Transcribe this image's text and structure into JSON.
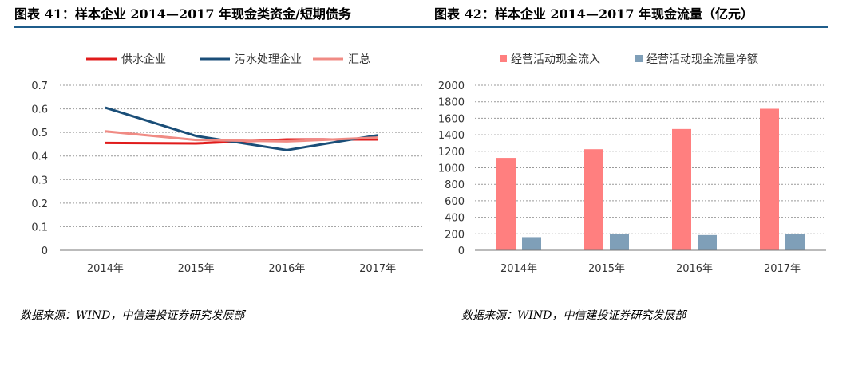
{
  "left_title": "图表 41：样本企业 2014—2017 年现金类资金/短期债务",
  "right_title": "图表 42：样本企业 2014—2017 年现金流量（亿元）",
  "left_source": "数据来源：WIND，中信建投证券研究发展部",
  "right_source": "数据来源：WIND，中信建投证券研究发展部",
  "colors": {
    "rule": "#1f5d8b"
  },
  "chart_data": [
    {
      "type": "line",
      "categories": [
        "2014年",
        "2015年",
        "2016年",
        "2017年"
      ],
      "ylim": [
        0,
        0.7
      ],
      "yticks": [
        "0",
        "0.1",
        "0.2",
        "0.3",
        "0.4",
        "0.5",
        "0.6",
        "0.7"
      ],
      "grid": true,
      "legend_position": "top",
      "series": [
        {
          "name": "供水企业",
          "values": [
            0.455,
            0.453,
            0.47,
            0.47
          ],
          "color": "#e01b1b"
        },
        {
          "name": "污水处理企业",
          "values": [
            0.605,
            0.485,
            0.425,
            0.488
          ],
          "color": "#1a4e78"
        },
        {
          "name": "汇总",
          "values": [
            0.505,
            0.468,
            0.462,
            0.478
          ],
          "color": "#f08b84"
        }
      ]
    },
    {
      "type": "bar",
      "categories": [
        "2014年",
        "2015年",
        "2016年",
        "2017年"
      ],
      "ylim": [
        0,
        2000
      ],
      "yticks": [
        "0",
        "200",
        "400",
        "600",
        "800",
        "1000",
        "1200",
        "1400",
        "1600",
        "1800",
        "2000"
      ],
      "grid": true,
      "legend_position": "top",
      "series": [
        {
          "name": "经营活动现金流入",
          "values": [
            1120,
            1225,
            1470,
            1715
          ],
          "color": "#ff7f7f"
        },
        {
          "name": "经营活动现金流量净额",
          "values": [
            160,
            195,
            185,
            195
          ],
          "color": "#7f9fb8"
        }
      ]
    }
  ]
}
